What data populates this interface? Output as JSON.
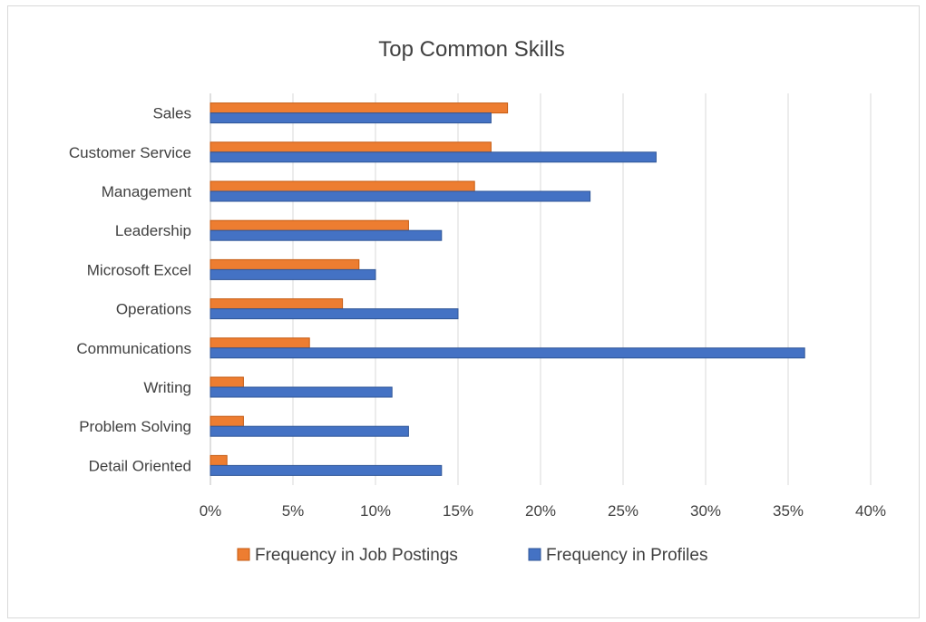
{
  "chart_data": {
    "type": "bar",
    "orientation": "horizontal",
    "title": "Top Common Skills",
    "categories": [
      "Sales",
      "Customer Service",
      "Management",
      "Leadership",
      "Microsoft Excel",
      "Operations",
      "Communications",
      "Writing",
      "Problem Solving",
      "Detail Oriented"
    ],
    "series": [
      {
        "name": "Frequency in Job Postings",
        "color": "#ed7d31",
        "values": [
          18,
          17,
          16,
          12,
          9,
          8,
          6,
          2,
          2,
          1
        ]
      },
      {
        "name": "Frequency in Profiles",
        "color": "#4472c4",
        "values": [
          17,
          27,
          23,
          14,
          10,
          15,
          36,
          11,
          12,
          14
        ]
      }
    ],
    "xlim": [
      0,
      40
    ],
    "x_ticks": [
      "0%",
      "5%",
      "10%",
      "15%",
      "20%",
      "25%",
      "30%",
      "35%",
      "40%"
    ],
    "unit": "%",
    "grid": true,
    "legend_position": "bottom"
  }
}
